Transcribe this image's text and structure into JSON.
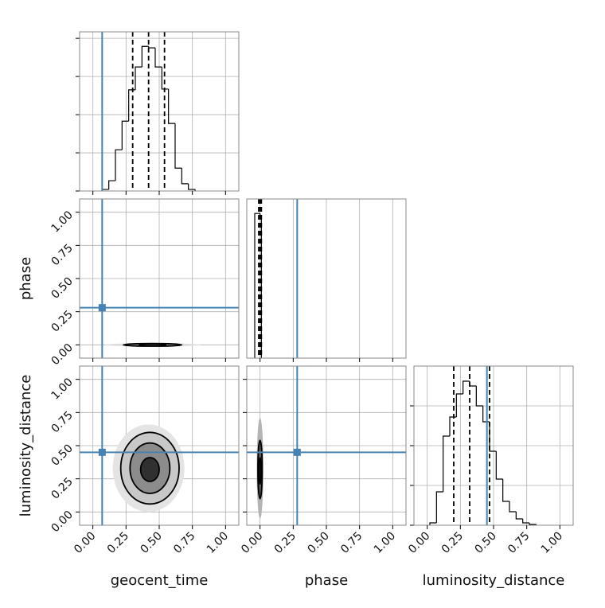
{
  "chart_data": {
    "type": "corner",
    "parameters": [
      "geocent_time",
      "phase",
      "luminosity_distance"
    ],
    "lim": [
      -0.1,
      1.1
    ],
    "ticks": [
      {
        "value": 0,
        "label": "0.00"
      },
      {
        "value": 0.25,
        "label": "0.25"
      },
      {
        "value": 0.5,
        "label": "0.50"
      },
      {
        "value": 0.75,
        "label": "0.75"
      },
      {
        "value": 1,
        "label": "1.00"
      }
    ],
    "grid": true,
    "truths": [
      0.07,
      0.28,
      0.45
    ],
    "truth_color": "#4682b4",
    "hist_color": "#000000",
    "histograms": [
      {
        "bins": [
          0.07,
          0.12,
          0.17,
          0.22,
          0.27,
          0.32,
          0.37,
          0.42,
          0.47,
          0.52,
          0.57,
          0.62,
          0.67,
          0.72,
          0.77
        ],
        "counts": [
          0.04,
          0.27,
          1.08,
          1.83,
          2.65,
          3.25,
          3.79,
          3.75,
          3.25,
          2.67,
          1.77,
          0.6,
          0.19,
          0.04
        ],
        "quantiles": [
          0.3,
          0.42,
          0.54
        ],
        "ylim": [
          0,
          4.17
        ],
        "yticks": [
          0,
          1,
          2,
          3,
          4
        ]
      },
      {
        "bins": [
          -0.04,
          0.0,
          0.01
        ],
        "counts": [
          1.0,
          0.98
        ],
        "quantiles": [
          -0.01,
          0.0,
          0.01
        ],
        "ylim": [
          0,
          1.1
        ]
      },
      {
        "bins": [
          0.02,
          0.07,
          0.12,
          0.17,
          0.22,
          0.27,
          0.32,
          0.37,
          0.42,
          0.47,
          0.52,
          0.57,
          0.62,
          0.67,
          0.72,
          0.77,
          0.82
        ],
        "counts": [
          0.06,
          0.84,
          2.24,
          2.72,
          3.3,
          3.62,
          3.5,
          3.0,
          2.6,
          1.86,
          1.16,
          0.6,
          0.34,
          0.16,
          0.06,
          0.02
        ],
        "quantiles": [
          0.2,
          0.32,
          0.47
        ],
        "ylim": [
          0,
          4.0
        ],
        "yticks": [
          0,
          1,
          2,
          3
        ]
      }
    ],
    "pairs": [
      {
        "x": 0,
        "y": 1,
        "contours": [
          {
            "cx": 0.45,
            "cy": 0.0,
            "rx": 0.36,
            "ry": 0.012,
            "fill": "#dcdcdc"
          },
          {
            "cx": 0.45,
            "cy": 0.0,
            "rx": 0.22,
            "ry": 0.01,
            "fill": "#a0a0a0"
          },
          {
            "cx": 0.45,
            "cy": 0.0,
            "rx": 0.1,
            "ry": 0.008,
            "fill": "#404040"
          }
        ]
      },
      {
        "x": 0,
        "y": 2,
        "contours": [
          {
            "cx": 0.42,
            "cy": 0.33,
            "rx": 0.27,
            "ry": 0.33,
            "fill": "#e4e4e4"
          },
          {
            "cx": 0.43,
            "cy": 0.33,
            "rx": 0.22,
            "ry": 0.27,
            "fill": "#c8c8c8"
          },
          {
            "cx": 0.43,
            "cy": 0.33,
            "rx": 0.15,
            "ry": 0.19,
            "fill": "#8c8c8c"
          },
          {
            "cx": 0.43,
            "cy": 0.32,
            "rx": 0.07,
            "ry": 0.09,
            "fill": "#303030"
          }
        ]
      },
      {
        "x": 1,
        "y": 2,
        "contours": [
          {
            "cx": 0.0,
            "cy": 0.33,
            "rx": 0.025,
            "ry": 0.38,
            "fill": "#b4b4b4"
          },
          {
            "cx": 0.0,
            "cy": 0.32,
            "rx": 0.016,
            "ry": 0.22,
            "fill": "#606060"
          },
          {
            "cx": 0.0,
            "cy": 0.31,
            "rx": 0.008,
            "ry": 0.1,
            "fill": "#202020"
          }
        ]
      }
    ]
  }
}
